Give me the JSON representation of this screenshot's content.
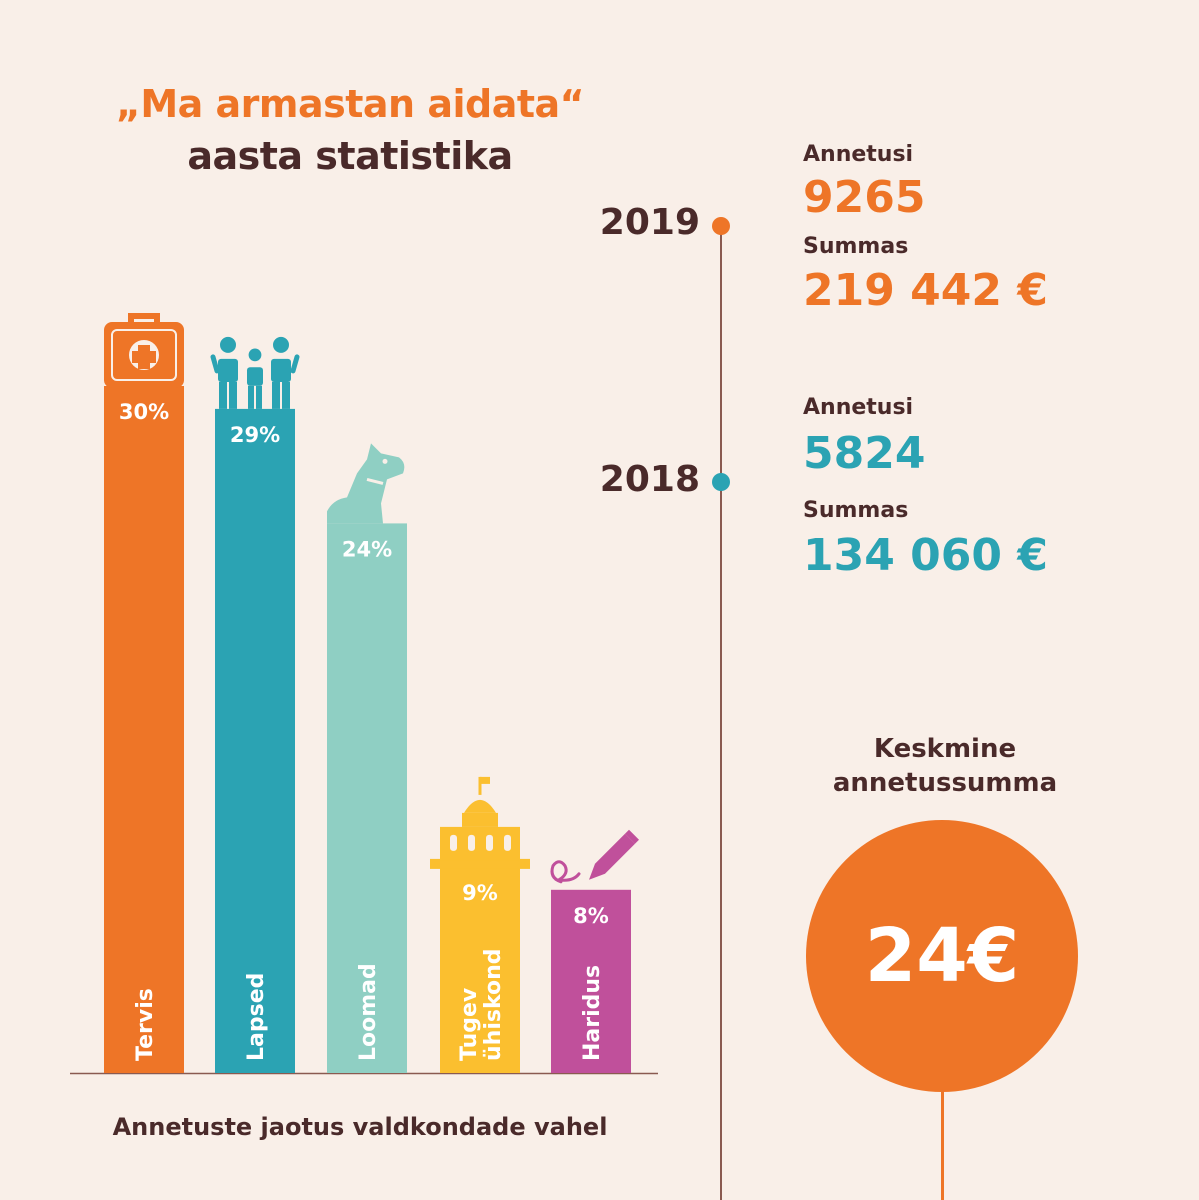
{
  "header": {
    "title_line1": "„Ma armastan aidata“",
    "title_line2": "aasta statistika"
  },
  "colors": {
    "orange": "#ee7527",
    "teal": "#2ba3b3",
    "mint": "#8fcfc3",
    "yellow": "#fbbf2f",
    "magenta": "#c0509b",
    "dark": "#4a2a2a",
    "background": "#f9efe8"
  },
  "chart_data": {
    "type": "bar",
    "title": "",
    "xlabel": "Annetuste jaotus valdkondade vahel",
    "ylabel": "",
    "ylim": [
      0,
      36
    ],
    "grid": false,
    "categories": [
      "Tervis",
      "Lapsed",
      "Loomad",
      "Tugev ühiskond",
      "Haridus"
    ],
    "category_lines": [
      [
        "Tervis"
      ],
      [
        "Lapsed"
      ],
      [
        "Loomad"
      ],
      [
        "Tugev",
        "ühiskond"
      ],
      [
        "Haridus"
      ]
    ],
    "values": [
      30,
      29,
      24,
      9,
      8
    ],
    "value_labels": [
      "30%",
      "29%",
      "24%",
      "9%",
      "8%"
    ],
    "bar_colors": [
      "#ee7527",
      "#2ba3b3",
      "#8fcfc3",
      "#fbbf2f",
      "#c0509b"
    ],
    "icons": [
      "first-aid-kit-icon",
      "family-icon",
      "dog-icon",
      "tower-icon",
      "pen-icon"
    ]
  },
  "caption": "Annetuste jaotus valdkondade vahel",
  "timeline": [
    {
      "year": "2019",
      "donations_label": "Annetusi",
      "donations": "9265",
      "sum_label": "Summas",
      "sum": "219 442 €",
      "color": "#ee7527"
    },
    {
      "year": "2018",
      "donations_label": "Annetusi",
      "donations": "5824",
      "sum_label": "Summas",
      "sum": "134 060 €",
      "color": "#2ba3b3"
    }
  ],
  "average": {
    "label_line1": "Keskmine",
    "label_line2": "annetussumma",
    "value": "24€"
  }
}
